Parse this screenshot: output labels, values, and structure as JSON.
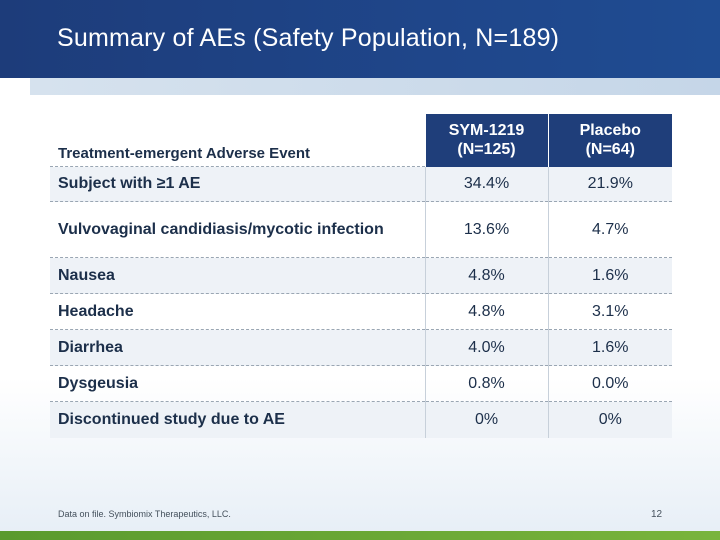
{
  "slide": {
    "title": "Summary of AEs (Safety Population, N=189)",
    "footnote": "Data on file. Symbiomix Therapeutics, LLC.",
    "page_number": "12"
  },
  "table": {
    "header": {
      "label": "Treatment-emergent Adverse Event",
      "col1_line1": "SYM-1219",
      "col1_line2": "(N=125)",
      "col2_line1": "Placebo",
      "col2_line2": "(N=64)"
    },
    "rows": [
      {
        "label": "Subject with ≥1 AE",
        "sym": "34.4%",
        "placebo": "21.9%"
      },
      {
        "label": "Vulvovaginal candidiasis/mycotic infection",
        "sym": "13.6%",
        "placebo": "4.7%"
      },
      {
        "label": "Nausea",
        "sym": "4.8%",
        "placebo": "1.6%"
      },
      {
        "label": "Headache",
        "sym": "4.8%",
        "placebo": "3.1%"
      },
      {
        "label": "Diarrhea",
        "sym": "4.0%",
        "placebo": "1.6%"
      },
      {
        "label": "Dysgeusia",
        "sym": "0.8%",
        "placebo": "0.0%"
      },
      {
        "label": "Discontinued study due to AE",
        "sym": "0%",
        "placebo": "0%"
      }
    ]
  },
  "colors": {
    "header_bar": "#1f468a",
    "table_header": "#1f3e7a",
    "accent_green": "#79b43c"
  }
}
